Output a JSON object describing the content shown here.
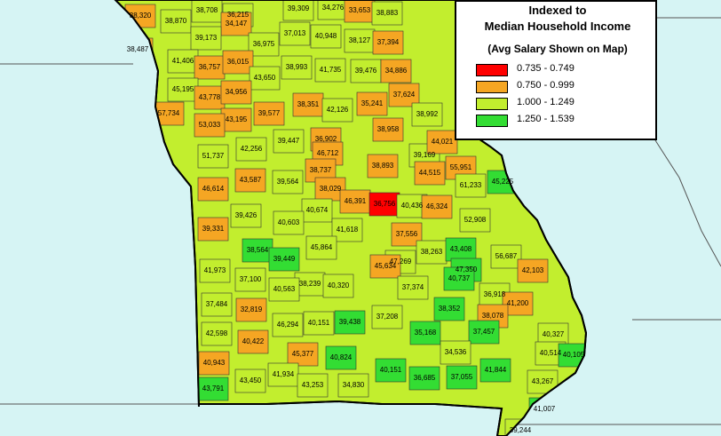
{
  "legend": {
    "title_line1": "Indexed to",
    "title_line2": "Median Household Income",
    "subtitle": "(Avg Salary Shown on Map)",
    "items": [
      {
        "label": "0.735 - 0.749",
        "color": "#ff0000"
      },
      {
        "label": "0.750 - 0.999",
        "color": "#f5a623"
      },
      {
        "label": "1.000 - 1.249",
        "color": "#c2ee2e"
      },
      {
        "label": "1.250 - 1.539",
        "color": "#33dd33"
      }
    ]
  },
  "colors": {
    "water": "#d6f4f4",
    "state_outline": "#000000"
  },
  "counties": [
    {
      "value": "38,320",
      "class": 1
    },
    {
      "value": "38,708",
      "class": 2
    },
    {
      "value": "36,215",
      "class": 2
    },
    {
      "value": "39,309",
      "class": 2
    },
    {
      "value": "34,276",
      "class": 2
    },
    {
      "value": "33,653",
      "class": 1
    },
    {
      "value": "38,883",
      "class": 2
    },
    {
      "value": "38,870",
      "class": 2
    },
    {
      "value": "34,147",
      "class": 1
    },
    {
      "value": "39,173",
      "class": 2
    },
    {
      "value": "36,975",
      "class": 2
    },
    {
      "value": "37,013",
      "class": 2
    },
    {
      "value": "40,948",
      "class": 2
    },
    {
      "value": "38,127",
      "class": 2
    },
    {
      "value": "37,394",
      "class": 1
    },
    {
      "value": "38,487",
      "class": 1
    },
    {
      "value": "41,406",
      "class": 2
    },
    {
      "value": "36,757",
      "class": 1
    },
    {
      "value": "36,015",
      "class": 1
    },
    {
      "value": "38,993",
      "class": 2
    },
    {
      "value": "41,735",
      "class": 2
    },
    {
      "value": "39,476",
      "class": 2
    },
    {
      "value": "34,886",
      "class": 1
    },
    {
      "value": "45,195",
      "class": 2
    },
    {
      "value": "43,650",
      "class": 2
    },
    {
      "value": "43,778",
      "class": 1
    },
    {
      "value": "34,956",
      "class": 1
    },
    {
      "value": "37,624",
      "class": 1
    },
    {
      "value": "57,734",
      "class": 1
    },
    {
      "value": "43,195",
      "class": 1
    },
    {
      "value": "39,577",
      "class": 1
    },
    {
      "value": "38,351",
      "class": 1
    },
    {
      "value": "42,126",
      "class": 2
    },
    {
      "value": "35,241",
      "class": 1
    },
    {
      "value": "38,992",
      "class": 2
    },
    {
      "value": "53,033",
      "class": 1
    },
    {
      "value": "38,958",
      "class": 1
    },
    {
      "value": "39,447",
      "class": 2
    },
    {
      "value": "36,902",
      "class": 1
    },
    {
      "value": "51,737",
      "class": 2
    },
    {
      "value": "42,256",
      "class": 2
    },
    {
      "value": "46,712",
      "class": 1
    },
    {
      "value": "39,169",
      "class": 2
    },
    {
      "value": "44,021",
      "class": 1
    },
    {
      "value": "38,737",
      "class": 1
    },
    {
      "value": "38,893",
      "class": 1
    },
    {
      "value": "44,515",
      "class": 1
    },
    {
      "value": "55,951",
      "class": 1
    },
    {
      "value": "46,614",
      "class": 1
    },
    {
      "value": "43,587",
      "class": 1
    },
    {
      "value": "39,564",
      "class": 2
    },
    {
      "value": "38,029",
      "class": 1
    },
    {
      "value": "61,233",
      "class": 2
    },
    {
      "value": "45,225",
      "class": 3
    },
    {
      "value": "46,391",
      "class": 1
    },
    {
      "value": "36,756",
      "class": 0
    },
    {
      "value": "40,436",
      "class": 2
    },
    {
      "value": "46,324",
      "class": 1
    },
    {
      "value": "40,674",
      "class": 2
    },
    {
      "value": "39,426",
      "class": 2
    },
    {
      "value": "40,603",
      "class": 2
    },
    {
      "value": "52,908",
      "class": 2
    },
    {
      "value": "39,331",
      "class": 1
    },
    {
      "value": "41,618",
      "class": 2
    },
    {
      "value": "37,556",
      "class": 1
    },
    {
      "value": "45,864",
      "class": 2
    },
    {
      "value": "38,564",
      "class": 3
    },
    {
      "value": "38,263",
      "class": 2
    },
    {
      "value": "43,408",
      "class": 3
    },
    {
      "value": "56,687",
      "class": 2
    },
    {
      "value": "39,449",
      "class": 3
    },
    {
      "value": "47,269",
      "class": 2
    },
    {
      "value": "47,350",
      "class": 3
    },
    {
      "value": "41,973",
      "class": 2
    },
    {
      "value": "45,634",
      "class": 1
    },
    {
      "value": "42,103",
      "class": 1
    },
    {
      "value": "37,100",
      "class": 2
    },
    {
      "value": "38,239",
      "class": 2
    },
    {
      "value": "40,320",
      "class": 2
    },
    {
      "value": "40,737",
      "class": 3
    },
    {
      "value": "40,563",
      "class": 2
    },
    {
      "value": "37,374",
      "class": 2
    },
    {
      "value": "36,918",
      "class": 2
    },
    {
      "value": "37,484",
      "class": 2
    },
    {
      "value": "32,819",
      "class": 1
    },
    {
      "value": "41,200",
      "class": 1
    },
    {
      "value": "38,352",
      "class": 3
    },
    {
      "value": "46,294",
      "class": 2
    },
    {
      "value": "40,151",
      "class": 2
    },
    {
      "value": "37,208",
      "class": 2
    },
    {
      "value": "38,078",
      "class": 1
    },
    {
      "value": "39,438",
      "class": 3
    },
    {
      "value": "42,598",
      "class": 2
    },
    {
      "value": "40,422",
      "class": 1
    },
    {
      "value": "35,168",
      "class": 3
    },
    {
      "value": "37,457",
      "class": 3
    },
    {
      "value": "40,327",
      "class": 2
    },
    {
      "value": "45,377",
      "class": 1
    },
    {
      "value": "34,536",
      "class": 2
    },
    {
      "value": "40,943",
      "class": 1
    },
    {
      "value": "40,824",
      "class": 3
    },
    {
      "value": "40,514",
      "class": 2
    },
    {
      "value": "40,105",
      "class": 3
    },
    {
      "value": "40,151",
      "class": 3
    },
    {
      "value": "41,844",
      "class": 3
    },
    {
      "value": "41,934",
      "class": 2
    },
    {
      "value": "43,450",
      "class": 2
    },
    {
      "value": "36,685",
      "class": 3
    },
    {
      "value": "37,055",
      "class": 3
    },
    {
      "value": "43,267",
      "class": 2
    },
    {
      "value": "43,791",
      "class": 3
    },
    {
      "value": "43,253",
      "class": 2
    },
    {
      "value": "34,830",
      "class": 2
    },
    {
      "value": "41,007",
      "class": 3
    },
    {
      "value": "39,244",
      "class": 2
    }
  ]
}
